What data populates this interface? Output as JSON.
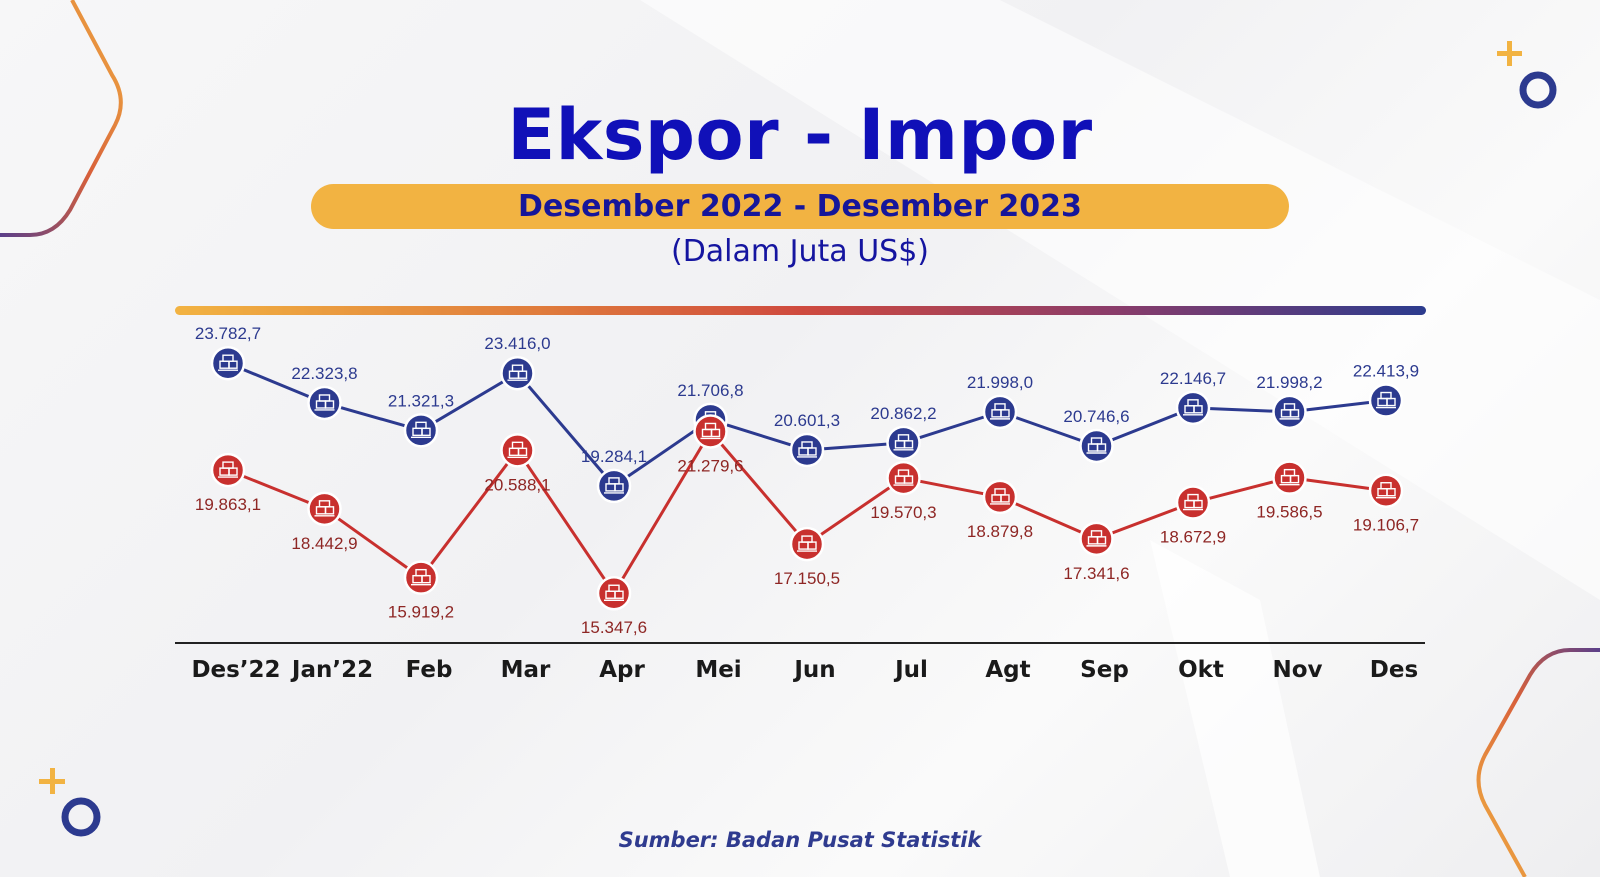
{
  "header": {
    "title": "Ekspor - Impor",
    "subtitle": "Desember 2022 -  Desember 2023",
    "unit": "(Dalam Juta US$)"
  },
  "footer": {
    "source": "Sumber: Badan Pusat Statistik"
  },
  "colors": {
    "title": "#1010b8",
    "subtitle_bar": "#f2b342",
    "export_series": "#2c3a8f",
    "import_series": "#c8302e",
    "accent_orange": "#f2b342",
    "accent_navy": "#2c3a8f"
  },
  "icons": {
    "marker": "container-stack-icon",
    "decor_plus": "plus-icon",
    "decor_ring": "ring-icon"
  },
  "chart_data": {
    "type": "line",
    "title": "Ekspor - Impor",
    "subtitle": "Desember 2022 -  Desember 2023",
    "ylabel": "(Dalam Juta US$)",
    "categories": [
      "Des’22",
      "Jan’22",
      "Feb",
      "Mar",
      "Apr",
      "Mei",
      "Jun",
      "Jul",
      "Agt",
      "Sep",
      "Okt",
      "Nov",
      "Des"
    ],
    "ylim": [
      14000,
      25000
    ],
    "grid": false,
    "series": [
      {
        "key": "export",
        "values": [
          23782.7,
          22323.8,
          21321.3,
          23416.0,
          19284.1,
          21706.8,
          20601.3,
          20862.2,
          21998.0,
          20746.6,
          22146.7,
          21998.2,
          22413.9
        ],
        "labels": [
          "23.782,7",
          "22.323,8",
          "21.321,3",
          "23.416,0",
          "19.284,1",
          "21.706,8",
          "20.601,3",
          "20.862,2",
          "21.998,0",
          "20.746,6",
          "22.146,7",
          "21.998,2",
          "22.413,9"
        ]
      },
      {
        "key": "import",
        "values": [
          19863.1,
          18442.9,
          15919.2,
          20588.1,
          15347.6,
          21279.6,
          17150.5,
          19570.3,
          18879.8,
          17341.6,
          18672.9,
          19586.5,
          19106.7
        ],
        "labels": [
          "19.863,1",
          "18.442,9",
          "15.919,2",
          "20.588,1",
          "15.347,6",
          "21.279,6",
          "17.150,5",
          "19.570,3",
          "18.879,8",
          "17.341,6",
          "18.672,9",
          "19.586,5",
          "19.106,7"
        ]
      }
    ]
  }
}
